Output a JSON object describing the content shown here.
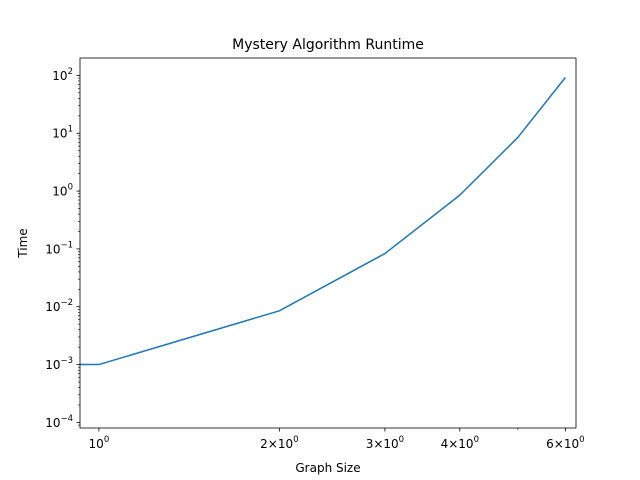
{
  "chart_data": {
    "type": "line",
    "title": "Mystery Algorithm Runtime",
    "xlabel": "Graph Size",
    "ylabel": "Time",
    "xscale": "log",
    "yscale": "log",
    "xlim": [
      0.93,
      6.25
    ],
    "ylim": [
      8e-05,
      200
    ],
    "grid": false,
    "legend": "none",
    "colors": {
      "series": "#1f77b4",
      "axes": "#000000",
      "background": "#ffffff"
    },
    "x_ticks": [
      {
        "value": 1,
        "mantissa": "",
        "base": "10",
        "exponent": "0"
      },
      {
        "value": 2,
        "mantissa": "2×",
        "base": "10",
        "exponent": "0"
      },
      {
        "value": 3,
        "mantissa": "3×",
        "base": "10",
        "exponent": "0"
      },
      {
        "value": 4,
        "mantissa": "4×",
        "base": "10",
        "exponent": "0"
      },
      {
        "value": 6,
        "mantissa": "6×",
        "base": "10",
        "exponent": "0"
      }
    ],
    "y_ticks": [
      {
        "value": 0.0001,
        "base": "10",
        "exponent": "−4"
      },
      {
        "value": 0.001,
        "base": "10",
        "exponent": "−3"
      },
      {
        "value": 0.01,
        "base": "10",
        "exponent": "−2"
      },
      {
        "value": 0.1,
        "base": "10",
        "exponent": "−1"
      },
      {
        "value": 1,
        "base": "10",
        "exponent": "0"
      },
      {
        "value": 10,
        "base": "10",
        "exponent": "1"
      },
      {
        "value": 100,
        "base": "10",
        "exponent": "2"
      }
    ],
    "series": [
      {
        "x": [
          0,
          1,
          2,
          3,
          4,
          5,
          6
        ],
        "y": [
          0.001,
          0.001,
          0.0085,
          0.083,
          0.85,
          8.5,
          92
        ]
      }
    ]
  }
}
